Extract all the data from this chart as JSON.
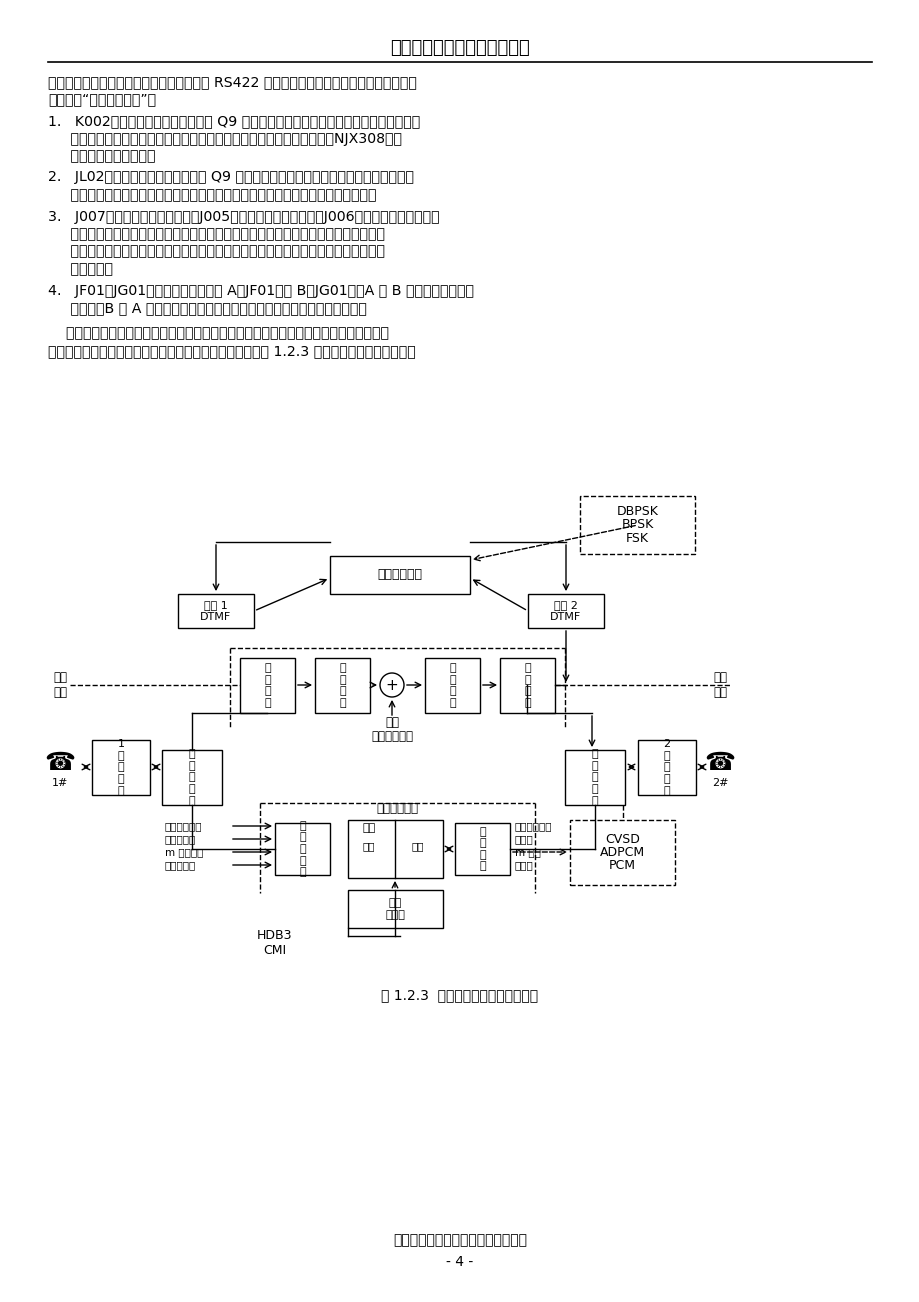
{
  "title": "《现代通信原理》实验指导书",
  "footer_org": "成都信息工程学院通信原理课程小组",
  "page_number": "- 4 -",
  "fig_caption": "图 1.2.3  各电路测试模块间连接框图",
  "bg": "#ffffff"
}
